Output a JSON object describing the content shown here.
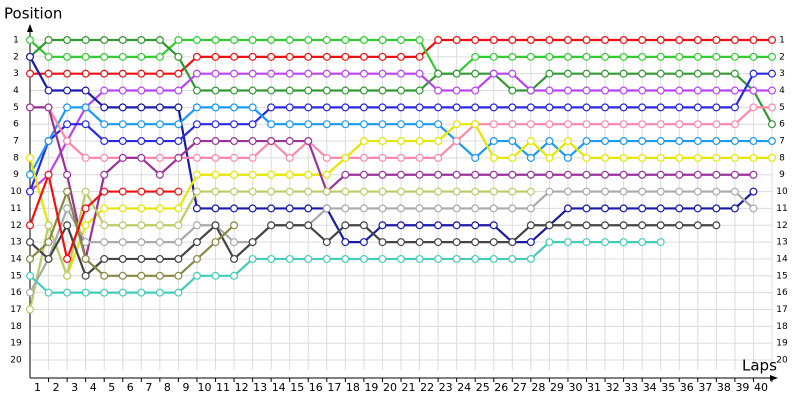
{
  "chart_data": {
    "type": "line",
    "y_label": "Position",
    "x_label": "Laps",
    "x": [
      0,
      1,
      2,
      3,
      4,
      5,
      6,
      7,
      8,
      9,
      10,
      11,
      12,
      13,
      14,
      15,
      16,
      17,
      18,
      19,
      20,
      21,
      22,
      23,
      24,
      25,
      26,
      27,
      28,
      29,
      30,
      31,
      32,
      33,
      34,
      35,
      36,
      37,
      38,
      39,
      40
    ],
    "xlim": [
      0,
      40
    ],
    "xticks": [
      1,
      2,
      3,
      4,
      5,
      6,
      7,
      8,
      9,
      10,
      11,
      12,
      13,
      14,
      15,
      16,
      17,
      18,
      19,
      20,
      21,
      22,
      23,
      24,
      25,
      26,
      27,
      28,
      29,
      30,
      31,
      32,
      33,
      34,
      35,
      36,
      37,
      38,
      39,
      40
    ],
    "ylim": [
      1,
      20
    ],
    "y_inverted": true,
    "yticks": [
      1,
      2,
      3,
      4,
      5,
      6,
      7,
      8,
      9,
      10,
      11,
      12,
      13,
      14,
      15,
      16,
      17,
      18,
      19,
      20
    ],
    "grid": true,
    "series": [
      {
        "color": "#ee1111",
        "values": [
          3,
          3,
          3,
          3,
          3,
          3,
          3,
          3,
          3,
          2,
          2,
          2,
          2,
          2,
          2,
          2,
          2,
          2,
          2,
          2,
          2,
          2,
          1,
          1,
          1,
          1,
          1,
          1,
          1,
          1,
          1,
          1,
          1,
          1,
          1,
          1,
          1,
          1,
          1,
          1,
          1
        ]
      },
      {
        "color": "#33cc33",
        "values": [
          1,
          2,
          2,
          2,
          2,
          2,
          2,
          2,
          1,
          1,
          1,
          1,
          1,
          1,
          1,
          1,
          1,
          1,
          1,
          1,
          1,
          1,
          3,
          3,
          2,
          2,
          2,
          2,
          2,
          2,
          2,
          2,
          2,
          2,
          2,
          2,
          2,
          2,
          2,
          2,
          2
        ]
      },
      {
        "color": "#339933",
        "values": [
          2,
          1,
          1,
          1,
          1,
          1,
          1,
          1,
          2,
          4,
          4,
          4,
          4,
          4,
          4,
          4,
          4,
          4,
          4,
          4,
          4,
          4,
          3,
          3,
          3,
          3,
          4,
          4,
          3,
          3,
          3,
          3,
          3,
          3,
          3,
          3,
          3,
          3,
          3,
          4,
          6
        ]
      },
      {
        "color": "#bb44ee",
        "values": [
          10,
          9,
          7,
          5,
          4,
          4,
          4,
          4,
          4,
          3,
          3,
          3,
          3,
          3,
          3,
          3,
          3,
          3,
          3,
          3,
          3,
          3,
          4,
          4,
          4,
          3,
          3,
          4,
          4,
          4,
          4,
          4,
          4,
          4,
          4,
          4,
          4,
          4,
          4,
          4,
          4
        ]
      },
      {
        "color": "#1a1aa8",
        "values": [
          2,
          4,
          4,
          4,
          5,
          5,
          5,
          5,
          5,
          11,
          11,
          11,
          11,
          11,
          11,
          11,
          11,
          13,
          13,
          12,
          12,
          12,
          12,
          12,
          12,
          12,
          13,
          13,
          12,
          11,
          11,
          11,
          11,
          11,
          11,
          11,
          11,
          11,
          11,
          10,
          null
        ]
      },
      {
        "color": "#2a2ae0",
        "values": [
          10,
          7,
          6,
          6,
          7,
          7,
          7,
          7,
          7,
          6,
          6,
          6,
          6,
          5,
          5,
          5,
          5,
          5,
          5,
          5,
          5,
          5,
          5,
          5,
          5,
          5,
          5,
          5,
          5,
          5,
          5,
          5,
          5,
          5,
          5,
          5,
          5,
          5,
          5,
          3,
          3
        ]
      },
      {
        "color": "#1a9af0",
        "values": [
          9,
          7,
          5,
          5,
          6,
          6,
          6,
          6,
          6,
          5,
          5,
          5,
          5,
          6,
          6,
          6,
          6,
          6,
          6,
          6,
          6,
          6,
          6,
          7,
          8,
          7,
          7,
          8,
          7,
          8,
          7,
          7,
          7,
          7,
          7,
          7,
          7,
          7,
          7,
          7,
          7
        ]
      },
      {
        "color": "#ff88aa",
        "values": [
          5,
          5,
          7,
          8,
          8,
          8,
          8,
          8,
          8,
          8,
          8,
          8,
          8,
          7,
          8,
          7,
          8,
          8,
          8,
          8,
          8,
          8,
          8,
          7,
          6,
          6,
          6,
          6,
          6,
          6,
          6,
          6,
          6,
          6,
          6,
          6,
          6,
          6,
          6,
          5,
          5
        ]
      },
      {
        "color": "#e6e600",
        "values": [
          8,
          12,
          15,
          12,
          11,
          11,
          11,
          11,
          11,
          9,
          9,
          9,
          9,
          9,
          9,
          9,
          9,
          8,
          7,
          7,
          7,
          7,
          7,
          6,
          6,
          8,
          8,
          7,
          8,
          7,
          8,
          8,
          8,
          8,
          8,
          8,
          8,
          8,
          8,
          8,
          8
        ]
      },
      {
        "color": "#993399",
        "values": [
          5,
          5,
          9,
          14,
          9,
          8,
          8,
          9,
          8,
          7,
          7,
          7,
          7,
          7,
          7,
          7,
          10,
          9,
          9,
          9,
          9,
          9,
          9,
          9,
          9,
          9,
          9,
          9,
          9,
          9,
          9,
          9,
          9,
          9,
          9,
          9,
          9,
          9,
          9,
          9,
          null
        ]
      },
      {
        "color": "#bbcc66",
        "values": [
          17,
          12,
          15,
          10,
          12,
          12,
          12,
          12,
          12,
          10,
          10,
          10,
          10,
          10,
          10,
          10,
          10,
          10,
          10,
          10,
          10,
          10,
          10,
          10,
          10,
          10,
          10,
          10,
          null,
          null,
          null,
          null,
          null,
          null,
          null,
          null,
          null,
          null,
          null,
          null,
          null
        ]
      },
      {
        "color": "#aaaaaa",
        "values": [
          16,
          14,
          11,
          13,
          13,
          13,
          13,
          13,
          13,
          12,
          12,
          13,
          13,
          12,
          12,
          12,
          11,
          11,
          11,
          11,
          11,
          11,
          11,
          11,
          11,
          11,
          11,
          11,
          10,
          10,
          10,
          10,
          10,
          10,
          10,
          10,
          10,
          10,
          10,
          11,
          null
        ]
      },
      {
        "color": "#444444",
        "values": [
          13,
          14,
          12,
          15,
          14,
          14,
          14,
          14,
          14,
          13,
          12,
          14,
          13,
          12,
          12,
          12,
          13,
          12,
          12,
          13,
          13,
          13,
          13,
          13,
          13,
          13,
          13,
          12,
          12,
          12,
          12,
          12,
          12,
          12,
          12,
          12,
          12,
          12,
          null,
          null,
          null
        ]
      },
      {
        "color": "#44ccbb",
        "values": [
          15,
          16,
          16,
          16,
          16,
          16,
          16,
          16,
          16,
          15,
          15,
          15,
          14,
          14,
          14,
          14,
          14,
          14,
          14,
          14,
          14,
          14,
          14,
          14,
          14,
          14,
          14,
          14,
          13,
          13,
          13,
          13,
          13,
          13,
          13,
          null,
          null,
          null,
          null,
          null,
          null
        ]
      },
      {
        "color": "#888844",
        "values": [
          14,
          13,
          10,
          14,
          15,
          15,
          15,
          15,
          15,
          14,
          13,
          12,
          null,
          null,
          null,
          null,
          null,
          null,
          null,
          null,
          null,
          null,
          null,
          null,
          null,
          null,
          null,
          null,
          null,
          null,
          null,
          null,
          null,
          null,
          null,
          null,
          null,
          null,
          null,
          null,
          null
        ]
      },
      {
        "color": "#ee1111",
        "values": [
          12,
          9,
          14,
          11,
          10,
          10,
          10,
          10,
          10,
          null,
          null,
          null,
          null,
          null,
          null,
          null,
          null,
          null,
          null,
          null,
          null,
          null,
          null,
          null,
          null,
          null,
          null,
          null,
          null,
          null,
          null,
          null,
          null,
          null,
          null,
          null,
          null,
          null,
          null,
          null,
          null
        ]
      }
    ]
  }
}
